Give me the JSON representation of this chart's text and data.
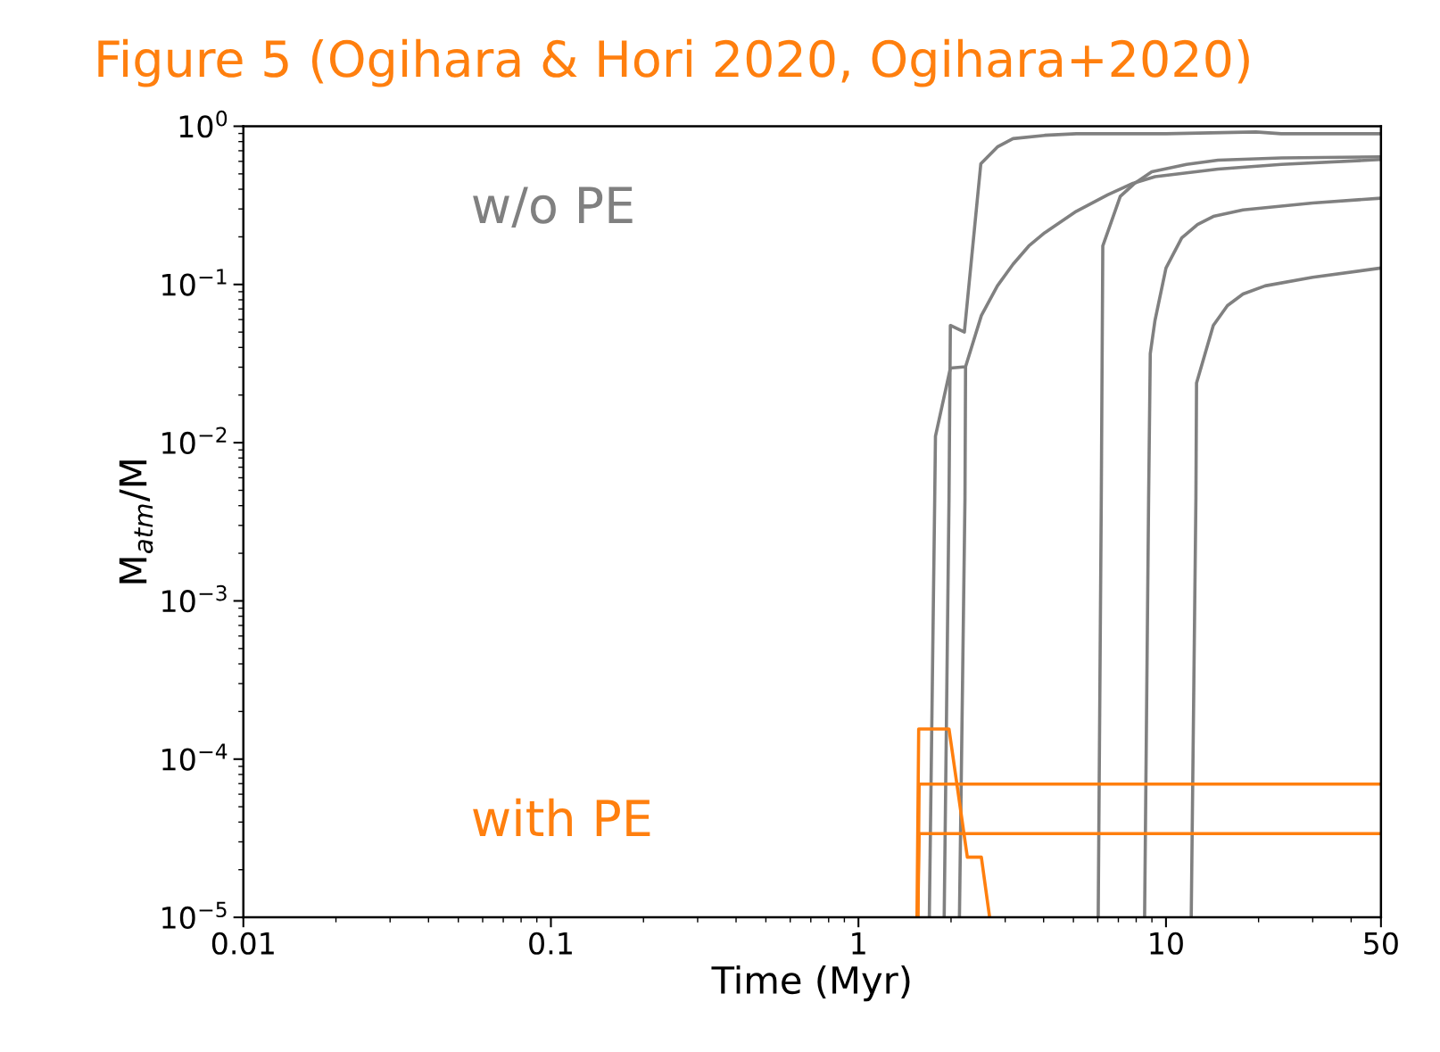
{
  "chart_data": {
    "type": "line",
    "title": "Figure 5 (Ogihara & Hori 2020, Ogihara+2020)",
    "xlabel": "Time (Myr)",
    "ylabel": "M$_{atm}$/M",
    "log": "xy",
    "xlim": [
      0.01,
      50
    ],
    "ylim": [
      1e-05,
      1
    ],
    "xticks": [
      0.01,
      0.1,
      1,
      10,
      50
    ],
    "yticks": [
      {
        "value": 1e-05,
        "label": "10$^{−5}$"
      },
      {
        "value": 0.0001,
        "label": "10$^{−4}$"
      },
      {
        "value": 0.001,
        "label": "10$^{−3}$"
      },
      {
        "value": 0.01,
        "label": "10$^{−2}$"
      },
      {
        "value": 0.1,
        "label": "10$^{−1}$"
      },
      {
        "value": 1,
        "label": "10$^{0}$"
      }
    ],
    "annotations": [
      "w/o PE",
      "with PE"
    ],
    "series": [
      {
        "color": "#808080",
        "x": [
          1.7,
          1.77,
          1.78,
          1.99,
          2.23,
          2.51,
          2.83,
          3.18,
          3.58,
          4.03,
          5.11,
          6.46,
          7.81,
          9.21,
          14.76,
          23.7,
          50
        ],
        "values": [
          1e-05,
          0.0044,
          0.011,
          0.0296,
          0.0302,
          0.0636,
          0.098,
          0.134,
          0.175,
          0.212,
          0.29,
          0.368,
          0.436,
          0.48,
          0.536,
          0.574,
          0.616
        ]
      },
      {
        "color": "#808080",
        "x": [
          1.9,
          1.97,
          1.99,
          2.21,
          2.5,
          2.83,
          3.18,
          4.03,
          5.11,
          10,
          19.6,
          23.7,
          50
        ],
        "values": [
          1e-05,
          0.0044,
          0.0551,
          0.05,
          0.58,
          0.74,
          0.835,
          0.876,
          0.897,
          0.897,
          0.92,
          0.897,
          0.897
        ]
      },
      {
        "color": "#808080",
        "x": [
          2.13,
          2.22,
          2.23
        ],
        "values": [
          1e-05,
          0.0044,
          0.0302
        ]
      },
      {
        "color": "#808080",
        "x": [
          6.02,
          6.16,
          6.23,
          7.1,
          7.91,
          8.99,
          11.66,
          14.76,
          23.7,
          50
        ],
        "values": [
          1e-05,
          0.0044,
          0.175,
          0.36,
          0.436,
          0.516,
          0.574,
          0.61,
          0.631,
          0.641
        ]
      },
      {
        "color": "#808080",
        "x": [
          8.52,
          8.78,
          8.89,
          9.21,
          10,
          11.25,
          12.66,
          14.25,
          17.8,
          30.0,
          50
        ],
        "values": [
          1e-05,
          0.0044,
          0.0366,
          0.0593,
          0.127,
          0.197,
          0.239,
          0.269,
          0.296,
          0.327,
          0.351
        ]
      },
      {
        "color": "#808080",
        "x": [
          12.08,
          12.51,
          12.57,
          14.25,
          15.84,
          17.8,
          21.0,
          30.0,
          50
        ],
        "values": [
          1e-05,
          0.0044,
          0.0238,
          0.0551,
          0.0735,
          0.087,
          0.098,
          0.111,
          0.127
        ]
      },
      {
        "color": "#ff7f0e",
        "x": [
          1.55,
          1.57,
          1.97,
          2.26,
          2.51,
          2.67
        ],
        "values": [
          1e-05,
          0.000155,
          0.000155,
          2.4e-05,
          2.4e-05,
          1e-05
        ]
      },
      {
        "color": "#ff7f0e",
        "x": [
          1.56,
          1.575,
          50
        ],
        "values": [
          1e-05,
          6.95e-05,
          6.95e-05
        ]
      },
      {
        "color": "#ff7f0e",
        "x": [
          1.56,
          1.575,
          50
        ],
        "values": [
          1e-05,
          3.38e-05,
          3.38e-05
        ]
      }
    ]
  }
}
